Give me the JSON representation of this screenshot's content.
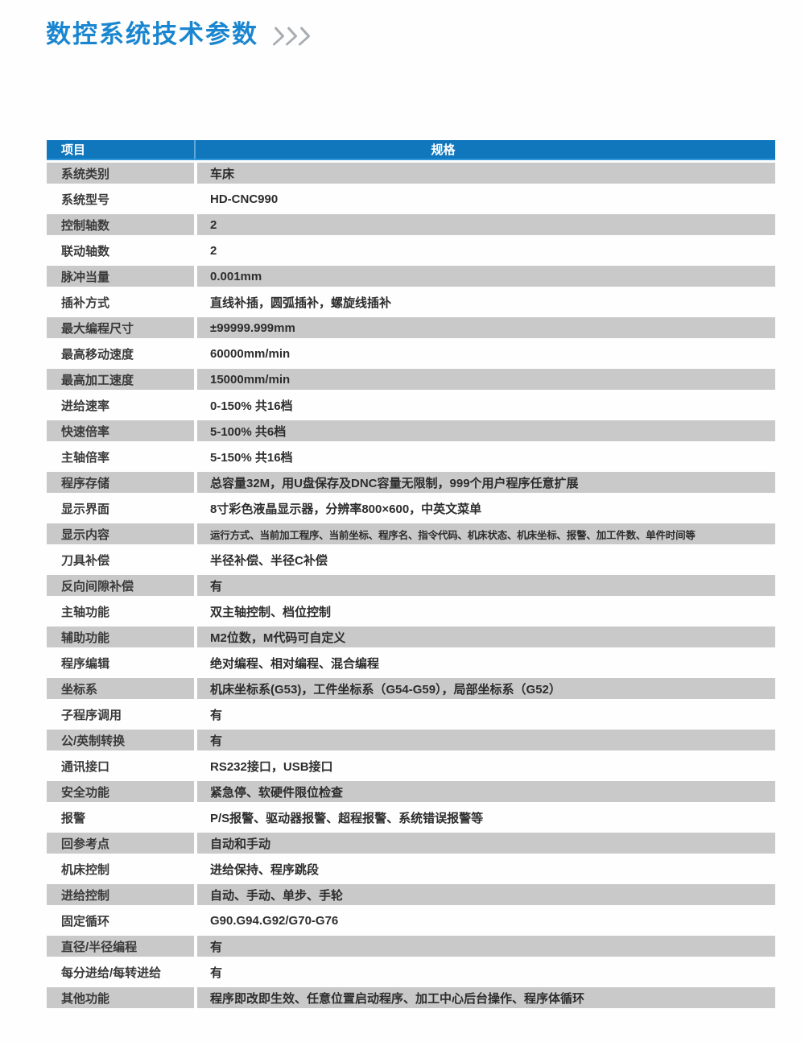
{
  "title": {
    "text": "数控系统技术参数",
    "arrows_icon": "triple-chevron-right"
  },
  "colors": {
    "title_blue": "#1a86d0",
    "header_bg": "#1177bd",
    "header_divider": "#5fa8d8",
    "header_underline": "#2e96da",
    "row_gray": "#c9c9c9",
    "label_text": "#3a3a3a",
    "value_text": "#2d2d2d",
    "arrow_gray": "#a9adb1"
  },
  "table": {
    "headers": [
      "项目",
      "规格"
    ],
    "rows": [
      {
        "item": "系统类别",
        "spec": "车床"
      },
      {
        "item": "系统型号",
        "spec": "HD-CNC990"
      },
      {
        "item": "控制轴数",
        "spec": "2"
      },
      {
        "item": "联动轴数",
        "spec": "2"
      },
      {
        "item": "脉冲当量",
        "spec": "0.001mm"
      },
      {
        "item": "插补方式",
        "spec": "直线补插，圆弧插补，螺旋线插补"
      },
      {
        "item": "最大编程尺寸",
        "spec": "±99999.999mm"
      },
      {
        "item": "最高移动速度",
        "spec": "60000mm/min"
      },
      {
        "item": "最高加工速度",
        "spec": "15000mm/min"
      },
      {
        "item": "进给速率",
        "spec": "0-150% 共16档"
      },
      {
        "item": "快速倍率",
        "spec": "5-100% 共6档"
      },
      {
        "item": "主轴倍率",
        "spec": "5-150% 共16档"
      },
      {
        "item": "程序存储",
        "spec": "总容量32M，用U盘保存及DNC容量无限制，999个用户程序任意扩展"
      },
      {
        "item": "显示界面",
        "spec": "8寸彩色液晶显示器，分辨率800×600，中英文菜单"
      },
      {
        "item": "显示内容",
        "spec": "运行方式、当前加工程序、当前坐标、程序名、指令代码、机床状态、机床坐标、报警、加工件数、单件时间等",
        "small": true
      },
      {
        "item": "刀具补偿",
        "spec": "半径补偿、半径C补偿"
      },
      {
        "item": "反向间隙补偿",
        "spec": "有"
      },
      {
        "item": "主轴功能",
        "spec": "双主轴控制、档位控制"
      },
      {
        "item": "辅助功能",
        "spec": "M2位数，M代码可自定义"
      },
      {
        "item": "程序编辑",
        "spec": "绝对编程、相对编程、混合编程"
      },
      {
        "item": "坐标系",
        "spec": "机床坐标系(G53)，工件坐标系（G54-G59），局部坐标系（G52）"
      },
      {
        "item": "子程序调用",
        "spec": "有"
      },
      {
        "item": "公/英制转换",
        "spec": "有"
      },
      {
        "item": "通讯接口",
        "spec": "RS232接口，USB接口"
      },
      {
        "item": "安全功能",
        "spec": "紧急停、软硬件限位检查"
      },
      {
        "item": "报警",
        "spec": "P/S报警、驱动器报警、超程报警、系统错误报警等"
      },
      {
        "item": "回参考点",
        "spec": "自动和手动"
      },
      {
        "item": "机床控制",
        "spec": "进给保持、程序跳段"
      },
      {
        "item": "进给控制",
        "spec": "自动、手动、单步、手轮"
      },
      {
        "item": "固定循环",
        "spec": "G90.G94.G92/G70-G76"
      },
      {
        "item": "直径/半径编程",
        "spec": "有"
      },
      {
        "item": "每分进给/每转进给",
        "spec": "有"
      },
      {
        "item": "其他功能",
        "spec": "程序即改即生效、任意位置启动程序、加工中心后台操作、程序体循环"
      }
    ]
  }
}
